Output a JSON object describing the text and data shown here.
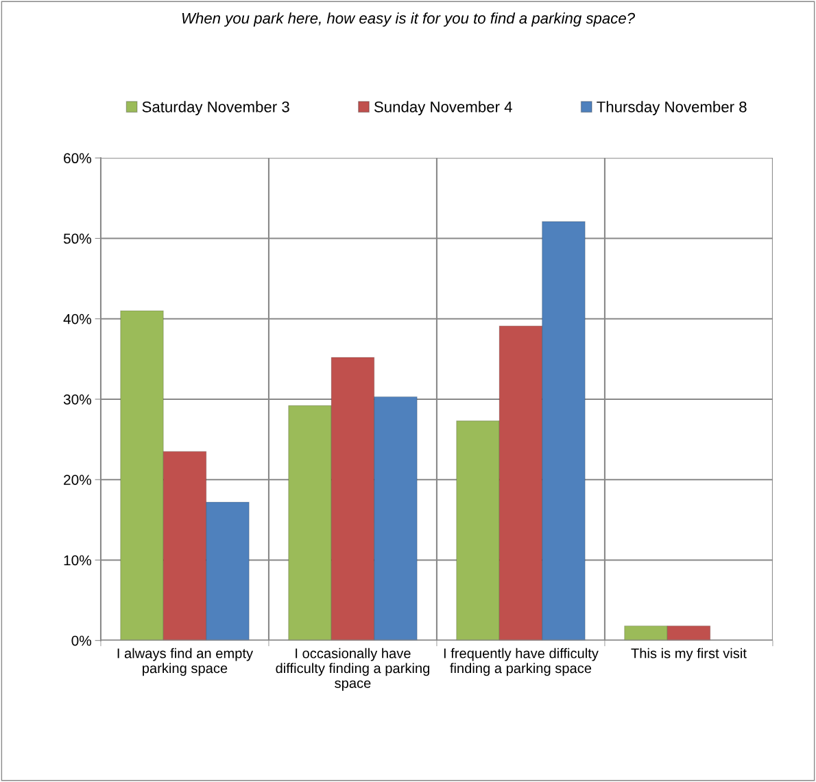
{
  "chart_data": {
    "type": "bar",
    "title": "When you park here, how easy is it for you to find a parking space?",
    "categories": [
      "I always find an empty parking space",
      "I occasionally have difficulty finding a parking space",
      "I frequently have difficulty finding a parking space",
      "This is my first visit"
    ],
    "series": [
      {
        "name": "Saturday November 3",
        "color": "#9bbb59",
        "values": [
          41.0,
          29.2,
          27.3,
          1.8
        ]
      },
      {
        "name": "Sunday November 4",
        "color": "#c0504d",
        "values": [
          23.5,
          35.2,
          39.1,
          1.8
        ]
      },
      {
        "name": "Thursday November 8",
        "color": "#4f81bd",
        "values": [
          17.2,
          30.3,
          52.1,
          null
        ]
      }
    ],
    "ylim": [
      0,
      60
    ],
    "yticks": [
      {
        "value": 0,
        "label": "0%"
      },
      {
        "value": 10,
        "label": "10%"
      },
      {
        "value": 20,
        "label": "20%"
      },
      {
        "value": 30,
        "label": "30%"
      },
      {
        "value": 40,
        "label": "40%"
      },
      {
        "value": 50,
        "label": "50%"
      },
      {
        "value": 60,
        "label": "60%"
      }
    ],
    "grid": true,
    "legend": "top"
  }
}
